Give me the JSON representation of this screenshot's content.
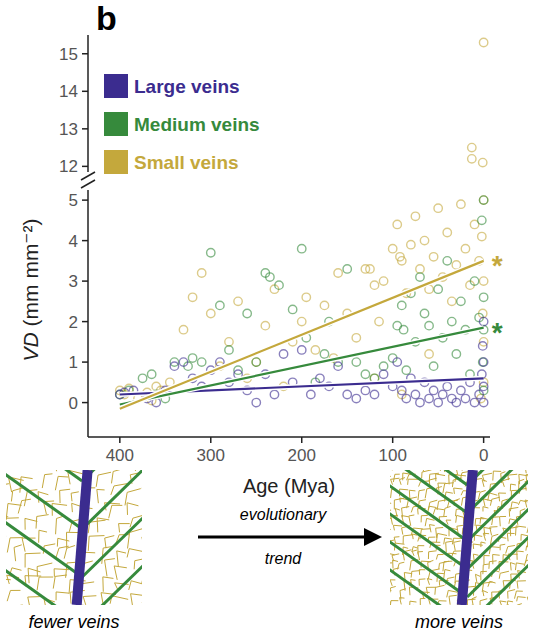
{
  "panel_label": "b",
  "illustration": {
    "arrow_label": [
      "evolutionary",
      "trend"
    ],
    "left_caption": "fewer veins",
    "right_caption": "more veins"
  },
  "chart_data": [
    {
      "type": "scatter",
      "y_label": "VD (mm mm⁻²)",
      "xlim": [
        435,
        -7
      ],
      "ylim": [
        11.85,
        15.5
      ],
      "yticks": [
        12,
        13,
        14,
        15
      ],
      "tick_labels": "y",
      "legend": "top-left",
      "marker": "open-circle",
      "series": [
        {
          "name": "Large veins",
          "color": "#3b2c8f",
          "x": [],
          "values": []
        },
        {
          "name": "Medium veins",
          "color": "#368a3c",
          "x": [],
          "values": []
        },
        {
          "name": "Small veins",
          "color": "#c4a83c",
          "x": [
            13,
            13,
            0,
            1
          ],
          "values": [
            12.5,
            12.2,
            15.3,
            12.1
          ]
        }
      ]
    },
    {
      "type": "scatter",
      "x_label": "Age (Mya)",
      "xlim": [
        435,
        -7
      ],
      "ylim": [
        -0.85,
        5.25
      ],
      "xticks": [
        400,
        300,
        200,
        100,
        0
      ],
      "yticks": [
        0,
        1,
        2,
        3,
        4,
        5
      ],
      "marker": "open-circle",
      "series": [
        {
          "color": "#3b2c8f",
          "x": [
            400,
            395,
            385,
            370,
            360,
            350,
            340,
            330,
            320,
            310,
            300,
            290,
            280,
            270,
            260,
            250,
            240,
            230,
            220,
            210,
            200,
            190,
            180,
            170,
            160,
            150,
            140,
            130,
            120,
            110,
            100,
            95,
            90,
            85,
            80,
            75,
            70,
            65,
            60,
            55,
            50,
            45,
            40,
            35,
            30,
            25,
            20,
            15,
            10,
            5,
            2,
            1,
            0,
            0,
            0,
            0
          ],
          "values": [
            0.2,
            0.25,
            0.3,
            0.1,
            0.0,
            0.3,
            0.9,
            1.0,
            0.6,
            0.4,
            0.8,
            1.0,
            0.5,
            0.7,
            0.3,
            0.0,
            0.7,
            0.2,
            1.2,
            0.5,
            1.3,
            0.2,
            0.6,
            0.4,
            0.9,
            0.2,
            0.1,
            0.3,
            0.2,
            0.7,
            0.4,
            1.0,
            0.3,
            0.1,
            0.6,
            0.2,
            0.0,
            0.5,
            0.1,
            0.3,
            0.0,
            0.2,
            0.4,
            0.1,
            0.0,
            0.3,
            0.1,
            0.5,
            0.0,
            0.2,
            0.7,
            1.4,
            2.0,
            0.4,
            0.0,
            1.0
          ]
        },
        {
          "color": "#368a3c",
          "x": [
            400,
            390,
            375,
            365,
            360,
            350,
            340,
            325,
            320,
            310,
            300,
            290,
            280,
            270,
            260,
            250,
            240,
            235,
            225,
            210,
            200,
            195,
            185,
            175,
            170,
            160,
            150,
            140,
            130,
            120,
            110,
            100,
            95,
            90,
            88,
            85,
            80,
            75,
            70,
            65,
            60,
            55,
            50,
            45,
            40,
            35,
            30,
            25,
            20,
            15,
            10,
            5,
            2,
            1,
            0,
            0,
            0,
            0
          ],
          "values": [
            0.2,
            0.3,
            0.6,
            0.7,
            0.2,
            0.1,
            1.0,
            0.9,
            1.1,
            1.0,
            3.7,
            2.4,
            1.3,
            0.8,
            2.2,
            1.0,
            3.2,
            3.1,
            2.9,
            2.3,
            3.8,
            1.6,
            0.5,
            1.2,
            2.0,
            1.0,
            3.3,
            1.0,
            0.7,
            0.6,
            0.9,
            1.1,
            1.9,
            2.4,
            1.8,
            0.8,
            2.7,
            1.5,
            3.1,
            2.2,
            1.9,
            0.9,
            2.8,
            1.6,
            3.5,
            2.0,
            1.2,
            2.5,
            1.8,
            0.7,
            3.0,
            2.1,
            4.5,
            1.0,
            2.6,
            5.0,
            0.3,
            1.8
          ]
        },
        {
          "color": "#c4a83c",
          "x": [
            400,
            395,
            390,
            380,
            370,
            365,
            360,
            355,
            345,
            330,
            320,
            310,
            300,
            290,
            280,
            270,
            260,
            250,
            240,
            230,
            220,
            210,
            200,
            195,
            185,
            175,
            165,
            160,
            150,
            140,
            130,
            125,
            120,
            115,
            110,
            100,
            95,
            92,
            90,
            85,
            80,
            75,
            70,
            65,
            60,
            55,
            50,
            45,
            40,
            35,
            30,
            25,
            20,
            15,
            10,
            5,
            2,
            1,
            0,
            0,
            0,
            0,
            3,
            60,
            90,
            120
          ],
          "values": [
            0.3,
            0.2,
            0.35,
            0.1,
            0.25,
            0.05,
            0.4,
            0.3,
            0.5,
            1.8,
            2.6,
            3.2,
            2.2,
            0.9,
            1.5,
            2.5,
            0.6,
            1.0,
            1.9,
            2.8,
            0.4,
            1.5,
            2.0,
            2.6,
            1.3,
            2.4,
            1.1,
            3.2,
            2.2,
            1.6,
            3.3,
            3.3,
            2.9,
            2.0,
            3.0,
            3.8,
            4.4,
            3.6,
            3.5,
            2.7,
            3.9,
            4.6,
            3.3,
            4.0,
            2.8,
            3.6,
            4.8,
            3.1,
            4.2,
            2.5,
            3.4,
            4.9,
            3.8,
            2.9,
            4.4,
            3.5,
            4.1,
            2.2,
            1.5,
            0.5,
            5.0,
            3.0,
            0.1,
            1.2,
            0.2,
            0.6
          ]
        },
        {
          "type": "line",
          "color": "#3b2c8f",
          "x": [
            400,
            0
          ],
          "values": [
            0.2,
            0.6
          ]
        },
        {
          "type": "line",
          "color": "#368a3c",
          "x": [
            400,
            0
          ],
          "values": [
            -0.05,
            1.85
          ]
        },
        {
          "type": "line",
          "color": "#c4a83c",
          "x": [
            400,
            0
          ],
          "values": [
            -0.15,
            3.5
          ]
        }
      ],
      "annotations": [
        {
          "text": "*",
          "x": 0,
          "y": 3.5,
          "color": "#c4a83c"
        },
        {
          "text": "*",
          "x": 0,
          "y": 1.85,
          "color": "#368a3c"
        }
      ]
    }
  ]
}
